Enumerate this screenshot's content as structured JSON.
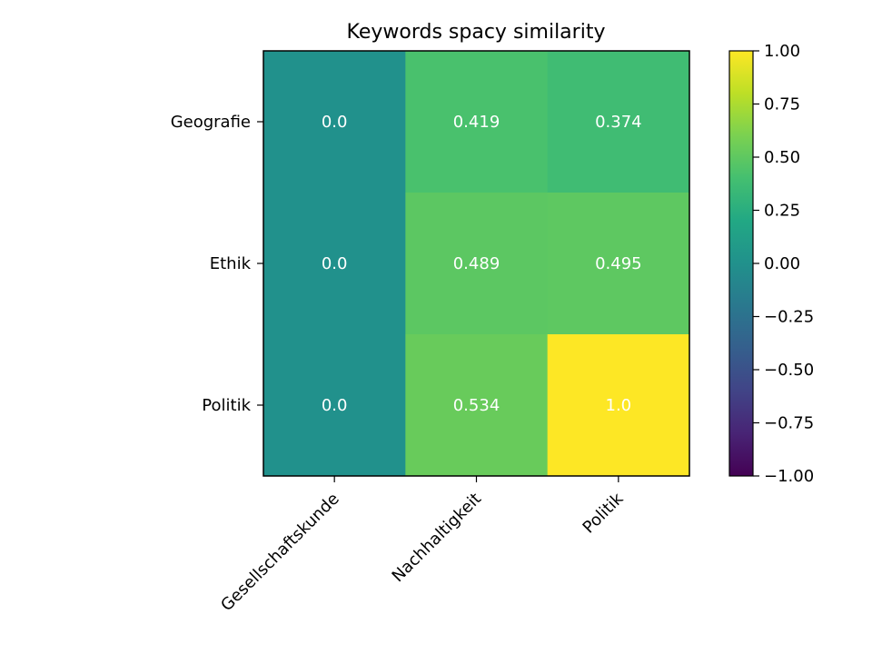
{
  "chart_data": {
    "type": "heatmap",
    "title": "Keywords spacy similarity",
    "x_categories": [
      "Gesellschaftskunde",
      "Nachhaltigkeit",
      "Politik"
    ],
    "y_categories": [
      "Geografie",
      "Ethik",
      "Politik"
    ],
    "values": [
      [
        0.0,
        0.419,
        0.374
      ],
      [
        0.0,
        0.489,
        0.495
      ],
      [
        0.0,
        0.534,
        1.0
      ]
    ],
    "value_labels": [
      [
        "0.0",
        "0.419",
        "0.374"
      ],
      [
        "0.0",
        "0.489",
        "0.495"
      ],
      [
        "0.0",
        "0.534",
        "1.0"
      ]
    ],
    "colormap": "viridis",
    "vmin": -1.0,
    "vmax": 1.0,
    "colorbar_ticks": [
      1.0,
      0.75,
      0.5,
      0.25,
      0.0,
      -0.25,
      -0.5,
      -0.75,
      -1.0
    ],
    "colorbar_tick_labels": [
      "1.00",
      "0.75",
      "0.50",
      "0.25",
      "0.00",
      "−0.25",
      "−0.50",
      "−0.75",
      "−1.00"
    ],
    "x_tick_rotation_deg": 45,
    "cell_text_color": "#ffffff"
  }
}
